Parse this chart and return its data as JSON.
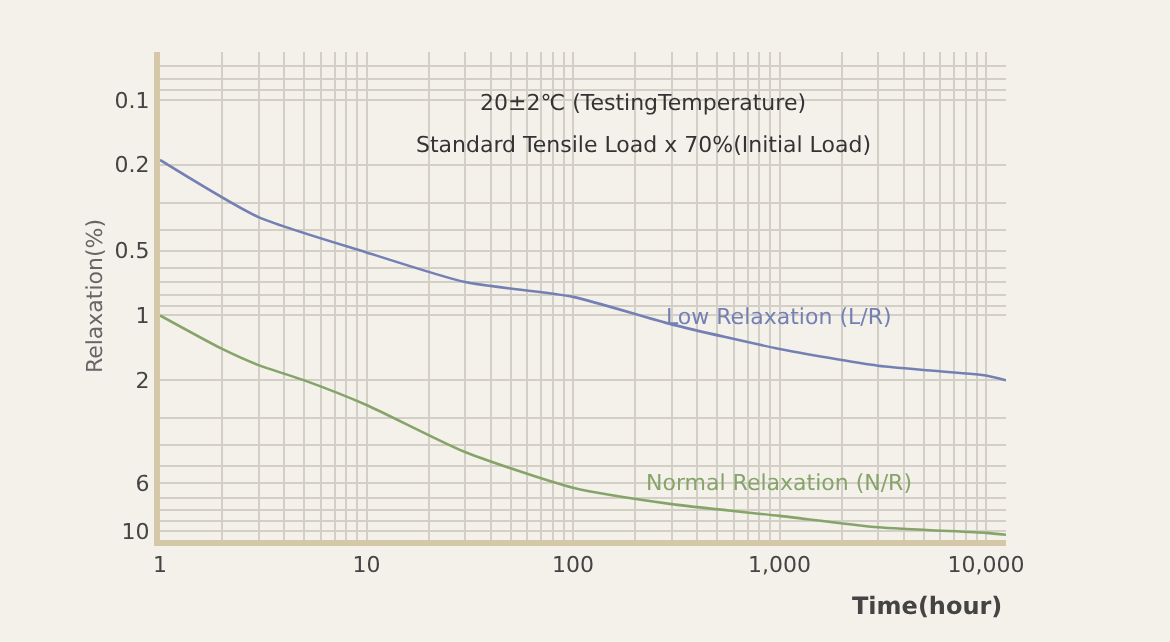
{
  "chart_data": {
    "type": "line",
    "xlabel": "Time(hour)",
    "ylabel": "Relaxation(%)",
    "annotations": [
      "20±2℃ (TestingTemperature)",
      "Standard Tensile Load x 70%(Initial Load)"
    ],
    "log": "xy",
    "grid": true,
    "legend": false,
    "marker": "none",
    "line_style": "solid",
    "xlim": [
      1,
      12500
    ],
    "xticks": [
      1,
      10,
      100,
      {
        "value": 1000,
        "label": "1,000"
      },
      {
        "value": 10000,
        "label": "10,000"
      }
    ],
    "ylim": [
      11,
      0.06
    ],
    "yticks": [
      0.1,
      0.2,
      0.5,
      1,
      2,
      6,
      10
    ],
    "series": [
      {
        "name": "Low Relaxation (L/R)",
        "color": "#7480b4",
        "x": [
          1,
          3,
          10,
          30,
          100,
          300,
          1000,
          3000,
          10000,
          12500
        ],
        "values": [
          0.19,
          0.35,
          0.51,
          0.7,
          0.82,
          1.1,
          1.43,
          1.71,
          1.9,
          2.0
        ]
      },
      {
        "name": "Normal Relaxation (N/R)",
        "color": "#86a46a",
        "x": [
          1,
          2,
          3,
          5,
          10,
          30,
          100,
          300,
          1000,
          3000,
          10000,
          12500
        ],
        "values": [
          1.0,
          1.43,
          1.7,
          2.0,
          2.6,
          4.3,
          6.3,
          7.5,
          8.5,
          9.6,
          10.2,
          10.4
        ]
      }
    ]
  }
}
